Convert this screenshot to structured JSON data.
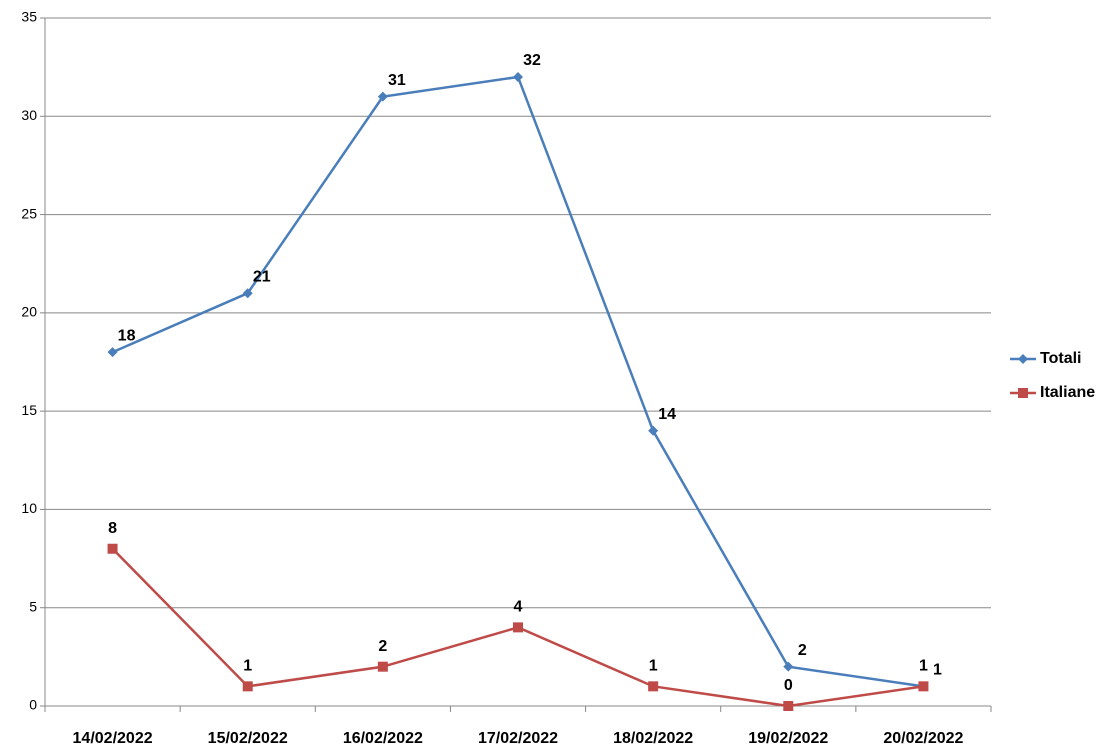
{
  "chart_data": {
    "type": "line",
    "categories": [
      "14/02/2022",
      "15/02/2022",
      "16/02/2022",
      "17/02/2022",
      "18/02/2022",
      "19/02/2022",
      "20/02/2022"
    ],
    "series": [
      {
        "name": "Totali",
        "color": "#4a7ebb",
        "marker": "diamond",
        "values": [
          18,
          21,
          31,
          32,
          14,
          2,
          1
        ]
      },
      {
        "name": "Italiane",
        "color": "#be4b48",
        "marker": "square",
        "values": [
          8,
          1,
          2,
          4,
          1,
          0,
          1
        ]
      }
    ],
    "ylim": [
      0,
      35
    ],
    "yticks": [
      0,
      5,
      10,
      15,
      20,
      25,
      30,
      35
    ],
    "grid": true,
    "legend": "right"
  }
}
